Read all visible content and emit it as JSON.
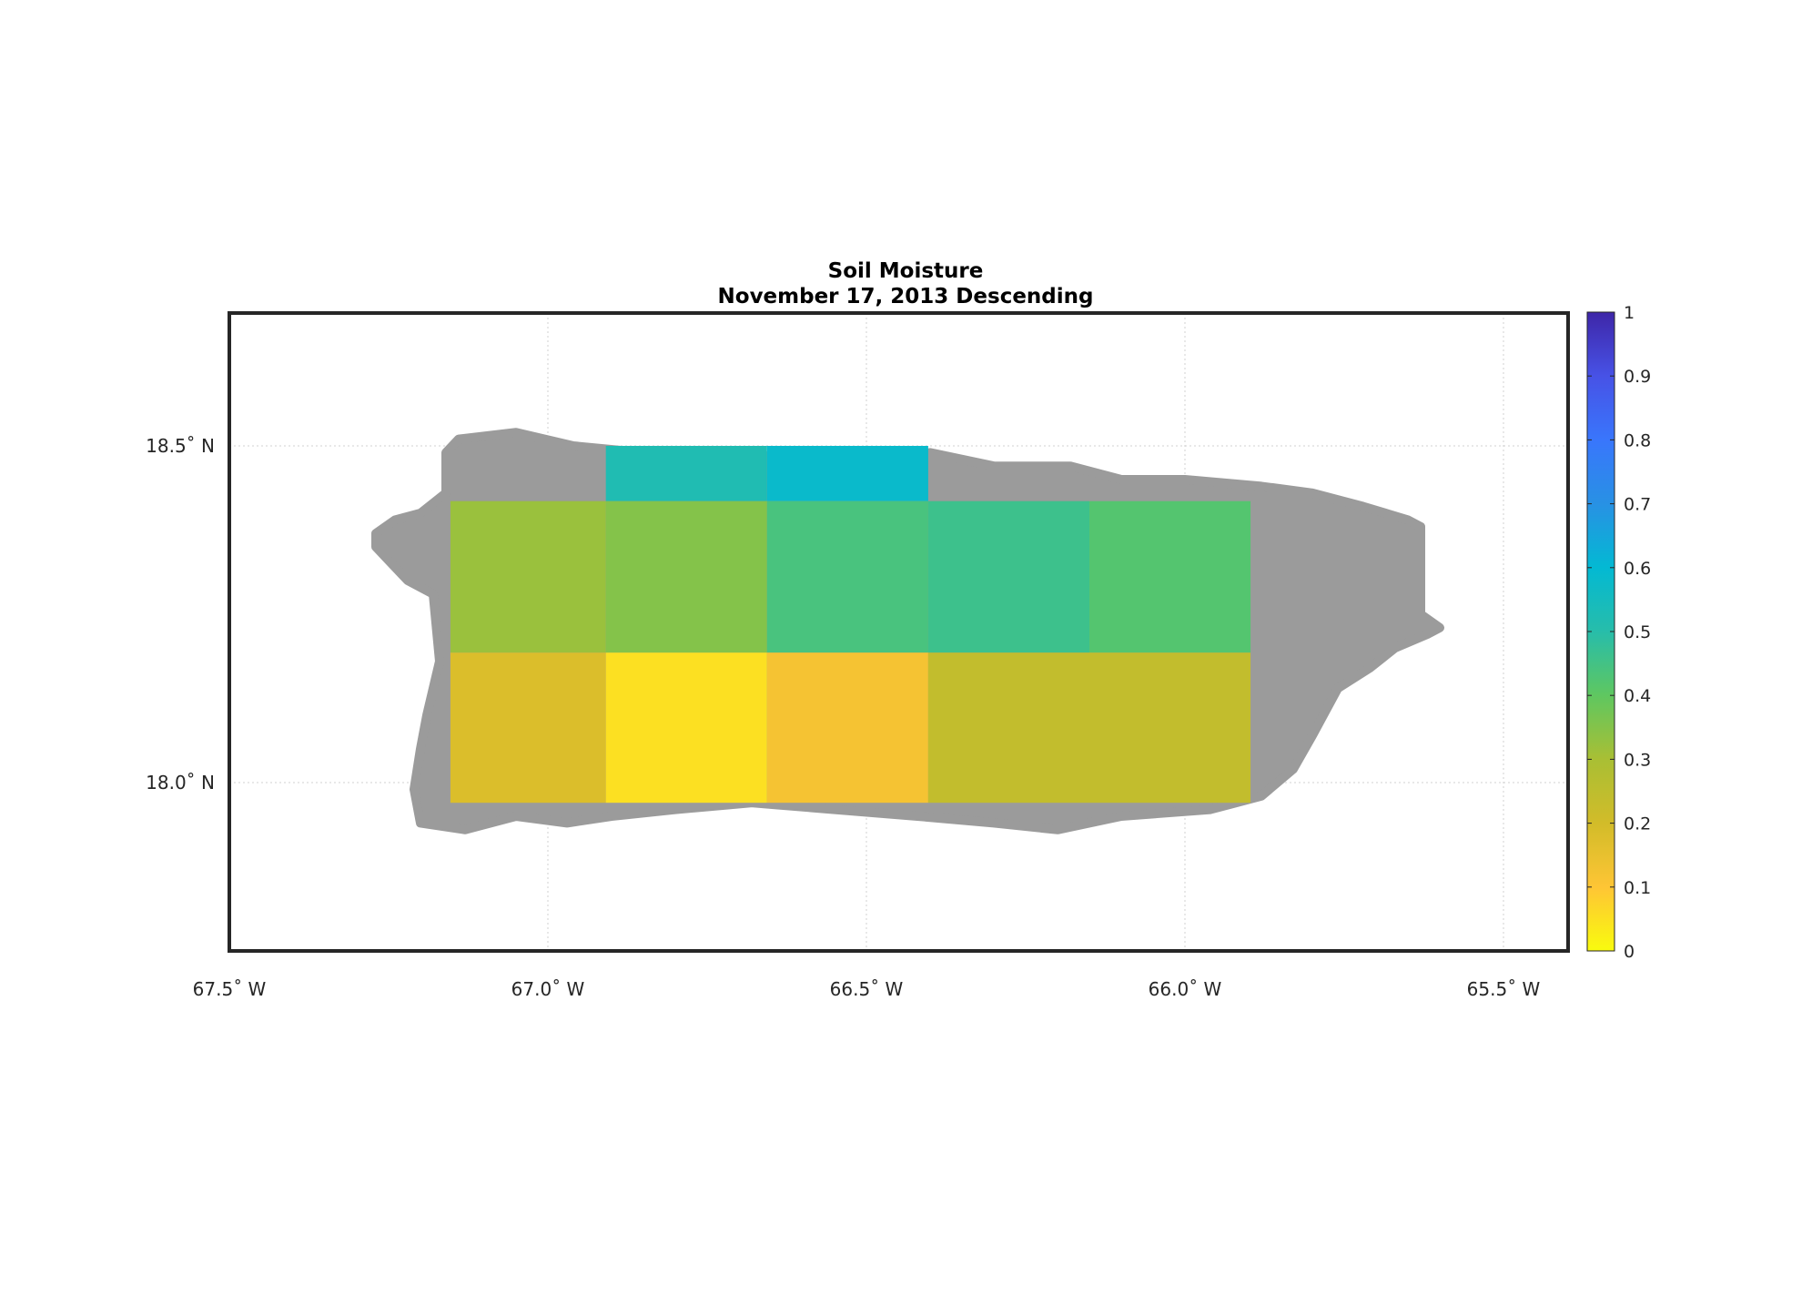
{
  "title": {
    "line1": "Soil Moisture",
    "line2": "November 17, 2013 Descending"
  },
  "chart_data": {
    "type": "heatmap",
    "title": "Soil Moisture",
    "subtitle": "November 17, 2013 Descending",
    "xlim": [
      -67.5,
      -65.4
    ],
    "ylim": [
      17.75,
      18.7
    ],
    "x_ticks": [
      -67.5,
      -67.0,
      -66.5,
      -66.0,
      -65.5
    ],
    "x_tick_labels": [
      "67.5˚ W",
      "67.0˚ W",
      "66.5˚ W",
      "66.0˚ W",
      "65.5˚ W"
    ],
    "y_ticks": [
      18.0,
      18.5
    ],
    "y_tick_labels": [
      "18.0˚ N",
      "18.5˚ N"
    ],
    "grid": true,
    "land_color": "#9b9b9b",
    "colorbar": {
      "min": 0,
      "max": 1,
      "ticks": [
        0,
        0.1,
        0.2,
        0.3,
        0.4,
        0.5,
        0.6,
        0.7,
        0.8,
        0.9,
        1
      ],
      "tick_labels": [
        "0",
        "0.1",
        "0.2",
        "0.3",
        "0.4",
        "0.5",
        "0.6",
        "0.7",
        "0.8",
        "0.9",
        "1"
      ],
      "colors": [
        "#f9fb0e",
        "#fec535",
        "#d2bc29",
        "#a9bf34",
        "#5fc760",
        "#27bdaa",
        "#03b9d3",
        "#2891e4",
        "#3976fc",
        "#4752e6",
        "#3e26a8"
      ]
    },
    "cells": [
      {
        "lon0": -67.153,
        "lon1": -66.909,
        "lat0": 18.418,
        "lat1": 18.5,
        "value": null
      },
      {
        "lon0": -66.909,
        "lon1": -66.656,
        "lat0": 18.418,
        "lat1": 18.5,
        "value": 0.52
      },
      {
        "lon0": -66.656,
        "lon1": -66.403,
        "lat0": 18.418,
        "lat1": 18.5,
        "value": 0.58
      },
      {
        "lon0": -67.153,
        "lon1": -66.909,
        "lat0": 18.193,
        "lat1": 18.418,
        "value": 0.32
      },
      {
        "lon0": -66.909,
        "lon1": -66.656,
        "lat0": 18.193,
        "lat1": 18.418,
        "value": 0.35
      },
      {
        "lon0": -66.656,
        "lon1": -66.403,
        "lat0": 18.193,
        "lat1": 18.418,
        "value": 0.44
      },
      {
        "lon0": -66.403,
        "lon1": -66.15,
        "lat0": 18.193,
        "lat1": 18.418,
        "value": 0.46
      },
      {
        "lon0": -66.15,
        "lon1": -65.897,
        "lat0": 18.193,
        "lat1": 18.418,
        "value": 0.42
      },
      {
        "lon0": -67.153,
        "lon1": -66.909,
        "lat0": 17.97,
        "lat1": 18.193,
        "value": 0.18
      },
      {
        "lon0": -66.909,
        "lon1": -66.656,
        "lat0": 17.97,
        "lat1": 18.193,
        "value": 0.05
      },
      {
        "lon0": -66.656,
        "lon1": -66.403,
        "lat0": 17.97,
        "lat1": 18.193,
        "value": 0.12
      },
      {
        "lon0": -66.403,
        "lon1": -66.15,
        "lat0": 17.97,
        "lat1": 18.193,
        "value": 0.24
      },
      {
        "lon0": -66.15,
        "lon1": -65.897,
        "lat0": 17.97,
        "lat1": 18.193,
        "value": 0.24
      }
    ],
    "land_outline": [
      [
        -67.27,
        18.37
      ],
      [
        -67.24,
        18.39
      ],
      [
        -67.2,
        18.4
      ],
      [
        -67.16,
        18.43
      ],
      [
        -67.16,
        18.49
      ],
      [
        -67.14,
        18.51
      ],
      [
        -67.05,
        18.52
      ],
      [
        -66.96,
        18.5
      ],
      [
        -66.85,
        18.49
      ],
      [
        -66.72,
        18.48
      ],
      [
        -66.6,
        18.49
      ],
      [
        -66.45,
        18.48
      ],
      [
        -66.4,
        18.49
      ],
      [
        -66.3,
        18.47
      ],
      [
        -66.18,
        18.47
      ],
      [
        -66.1,
        18.45
      ],
      [
        -66.0,
        18.45
      ],
      [
        -65.88,
        18.44
      ],
      [
        -65.8,
        18.43
      ],
      [
        -65.72,
        18.41
      ],
      [
        -65.65,
        18.39
      ],
      [
        -65.63,
        18.38
      ],
      [
        -65.63,
        18.25
      ],
      [
        -65.6,
        18.23
      ],
      [
        -65.62,
        18.22
      ],
      [
        -65.67,
        18.2
      ],
      [
        -65.71,
        18.17
      ],
      [
        -65.76,
        18.14
      ],
      [
        -65.8,
        18.07
      ],
      [
        -65.83,
        18.02
      ],
      [
        -65.88,
        17.98
      ],
      [
        -65.96,
        17.96
      ],
      [
        -66.1,
        17.95
      ],
      [
        -66.2,
        17.93
      ],
      [
        -66.3,
        17.94
      ],
      [
        -66.42,
        17.95
      ],
      [
        -66.55,
        17.96
      ],
      [
        -66.68,
        17.97
      ],
      [
        -66.8,
        17.96
      ],
      [
        -66.9,
        17.95
      ],
      [
        -66.97,
        17.94
      ],
      [
        -67.05,
        17.95
      ],
      [
        -67.13,
        17.93
      ],
      [
        -67.2,
        17.94
      ],
      [
        -67.21,
        17.99
      ],
      [
        -67.2,
        18.05
      ],
      [
        -67.19,
        18.1
      ],
      [
        -67.17,
        18.18
      ],
      [
        -67.18,
        18.28
      ],
      [
        -67.22,
        18.3
      ],
      [
        -67.25,
        18.33
      ],
      [
        -67.27,
        18.35
      ]
    ]
  }
}
